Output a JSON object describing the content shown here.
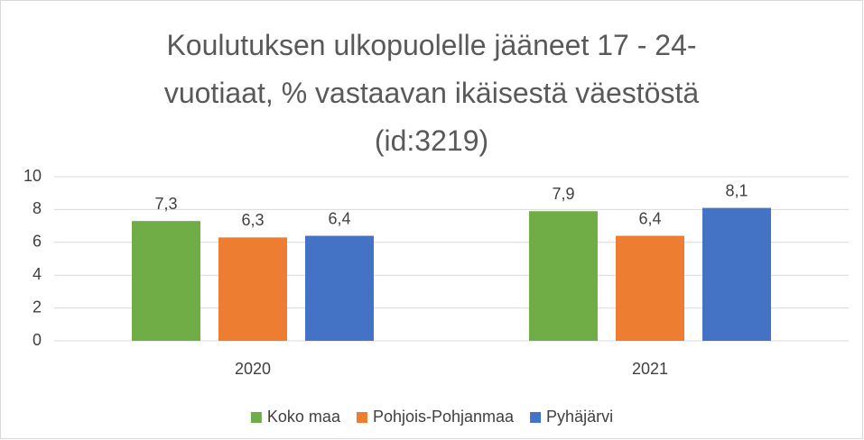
{
  "chart_data": {
    "type": "bar",
    "title": "Koulutuksen ulkopuolelle jääneet 17 - 24-vuotiaat, % vastaavan ikäisestä väestöstä (id:3219)",
    "categories": [
      "2020",
      "2021"
    ],
    "series": [
      {
        "name": "Koko maa",
        "color": "#70ad47",
        "values": [
          7.3,
          7.9
        ],
        "value_labels": [
          "7,3",
          "7,9"
        ]
      },
      {
        "name": "Pohjois-Pohjanmaa",
        "color": "#ed7d31",
        "values": [
          6.3,
          6.4
        ],
        "value_labels": [
          "6,3",
          "6,4"
        ]
      },
      {
        "name": "Pyhäjärvi",
        "color": "#4472c4",
        "values": [
          6.4,
          8.1
        ],
        "value_labels": [
          "6,4",
          "8,1"
        ]
      }
    ],
    "ylim": [
      0,
      10
    ],
    "yticks": [
      0,
      2,
      4,
      6,
      8,
      10
    ],
    "grid": true,
    "legend": "bottom"
  }
}
